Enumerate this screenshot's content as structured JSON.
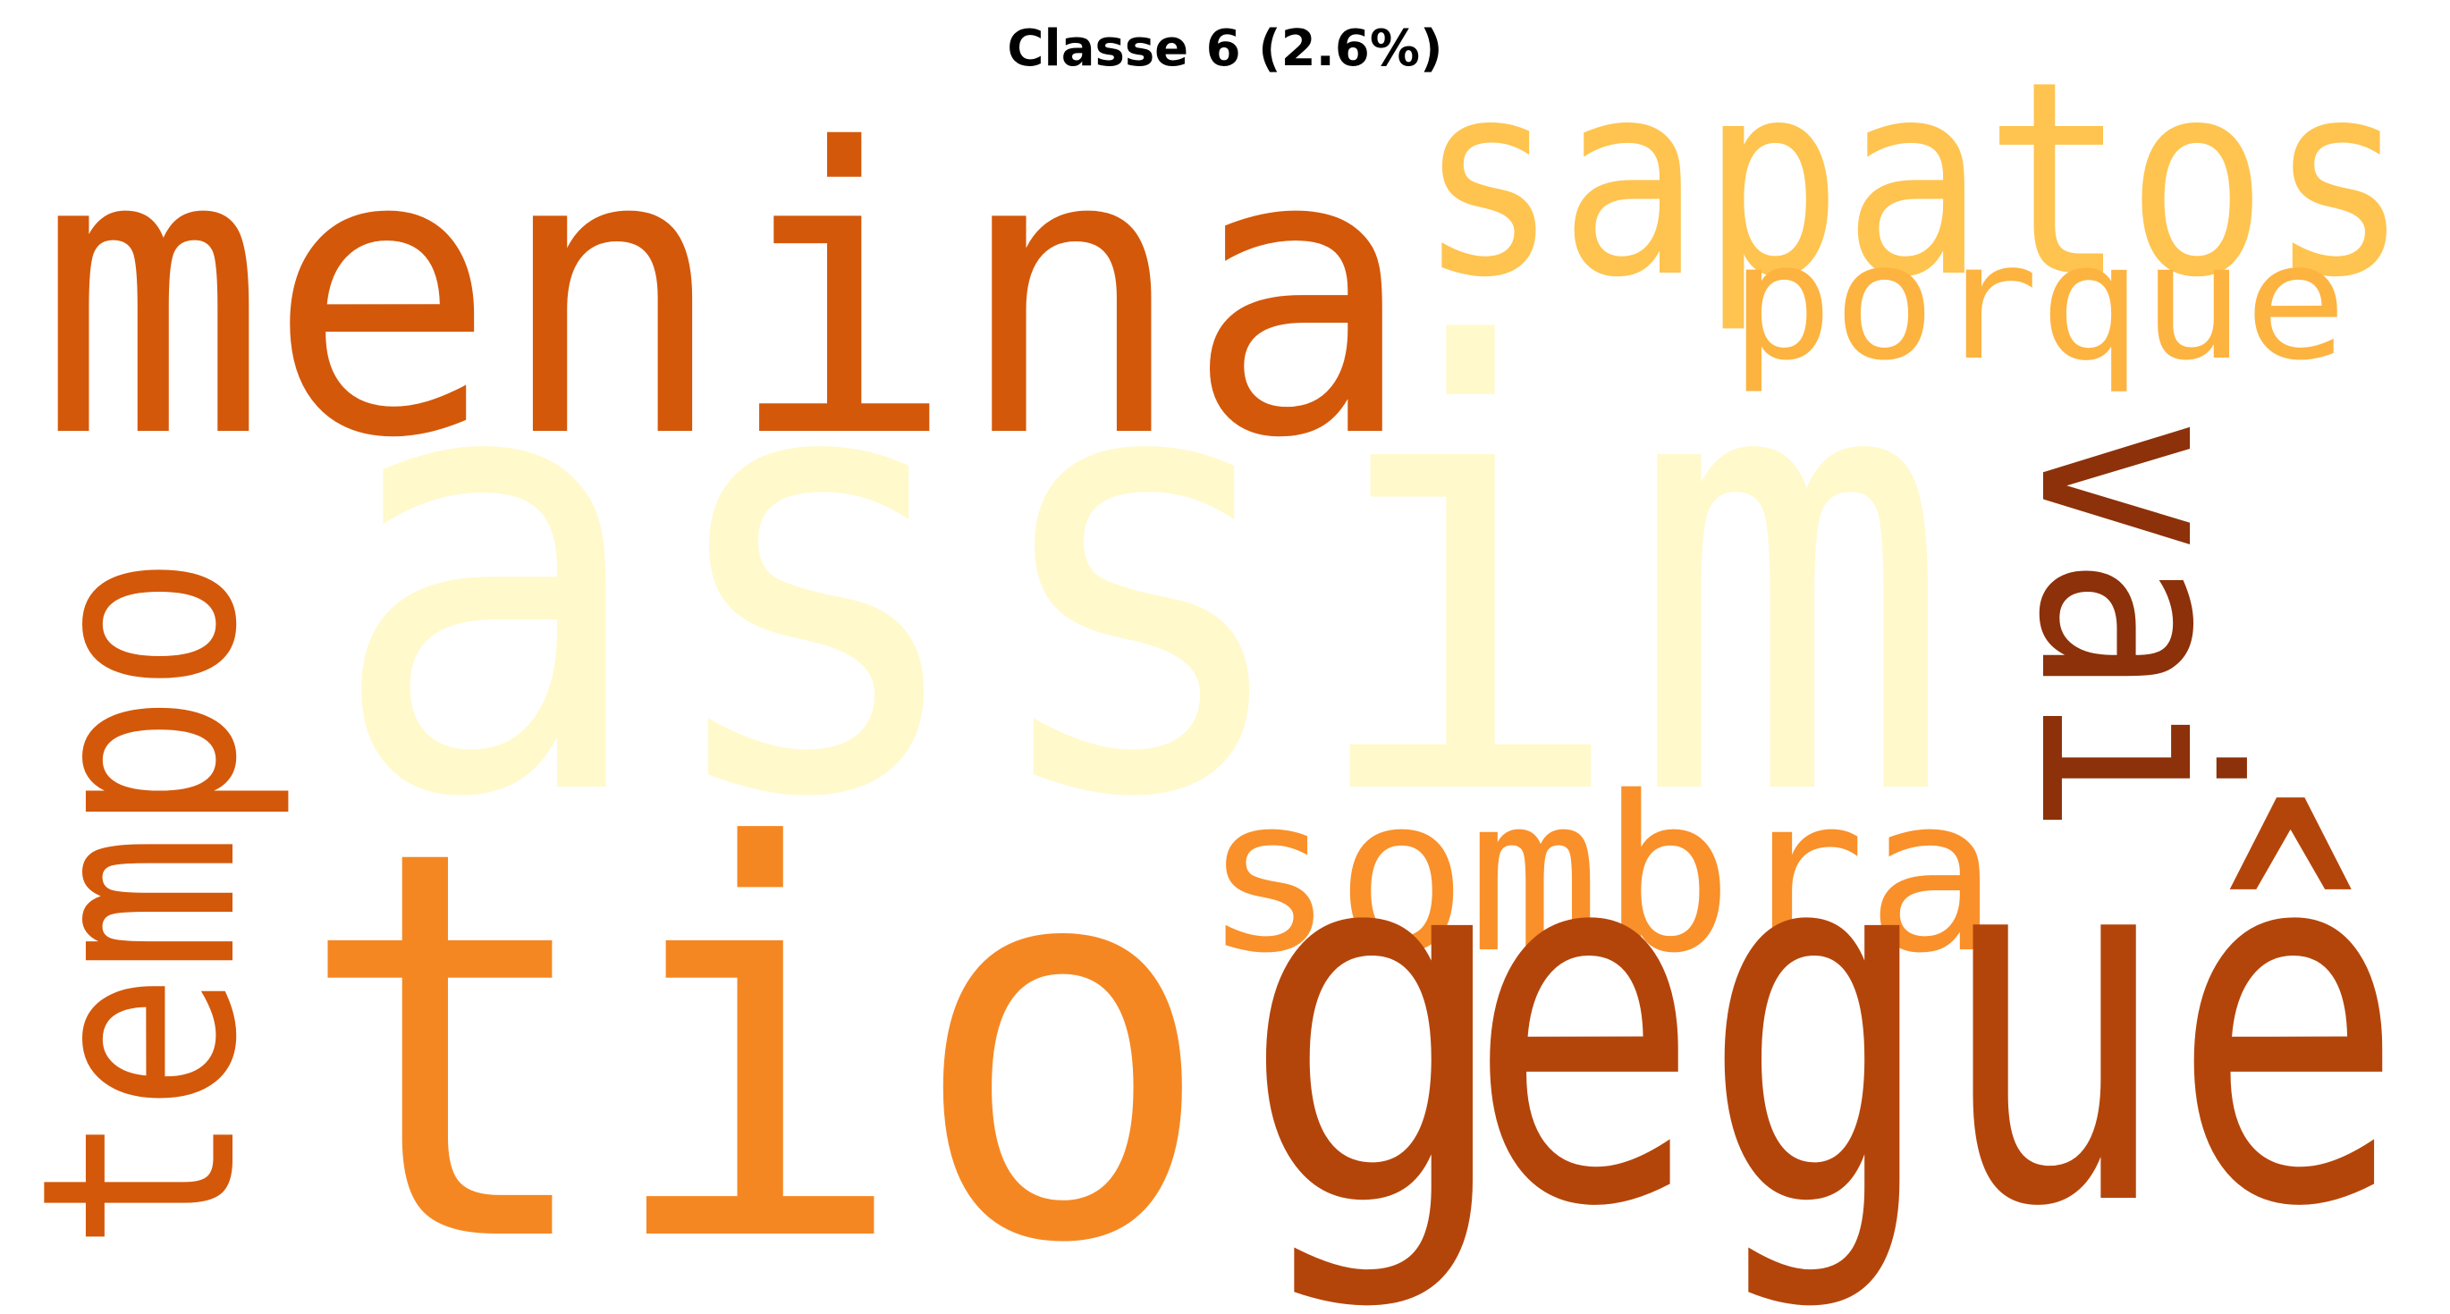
{
  "figure": {
    "title": "Classe 6 (2.6%)"
  },
  "chart_data": {
    "type": "wordcloud",
    "title": "Classe 6 (2.6%)",
    "words": [
      {
        "text": "menina",
        "color": "#D4580A"
      },
      {
        "text": "sapatos",
        "color": "#FEC44F"
      },
      {
        "text": "porque",
        "color": "#FDB340"
      },
      {
        "text": "assim",
        "color": "#FFF9CC"
      },
      {
        "text": "vai",
        "color": "#8C3109"
      },
      {
        "text": "tempo",
        "color": "#D4580A"
      },
      {
        "text": "sombra",
        "color": "#F9902A"
      },
      {
        "text": "tio",
        "color": "#F58722"
      },
      {
        "text": "eguê",
        "color": "#B4450A"
      },
      {
        "text": "g",
        "color": "#B4450A"
      }
    ]
  }
}
